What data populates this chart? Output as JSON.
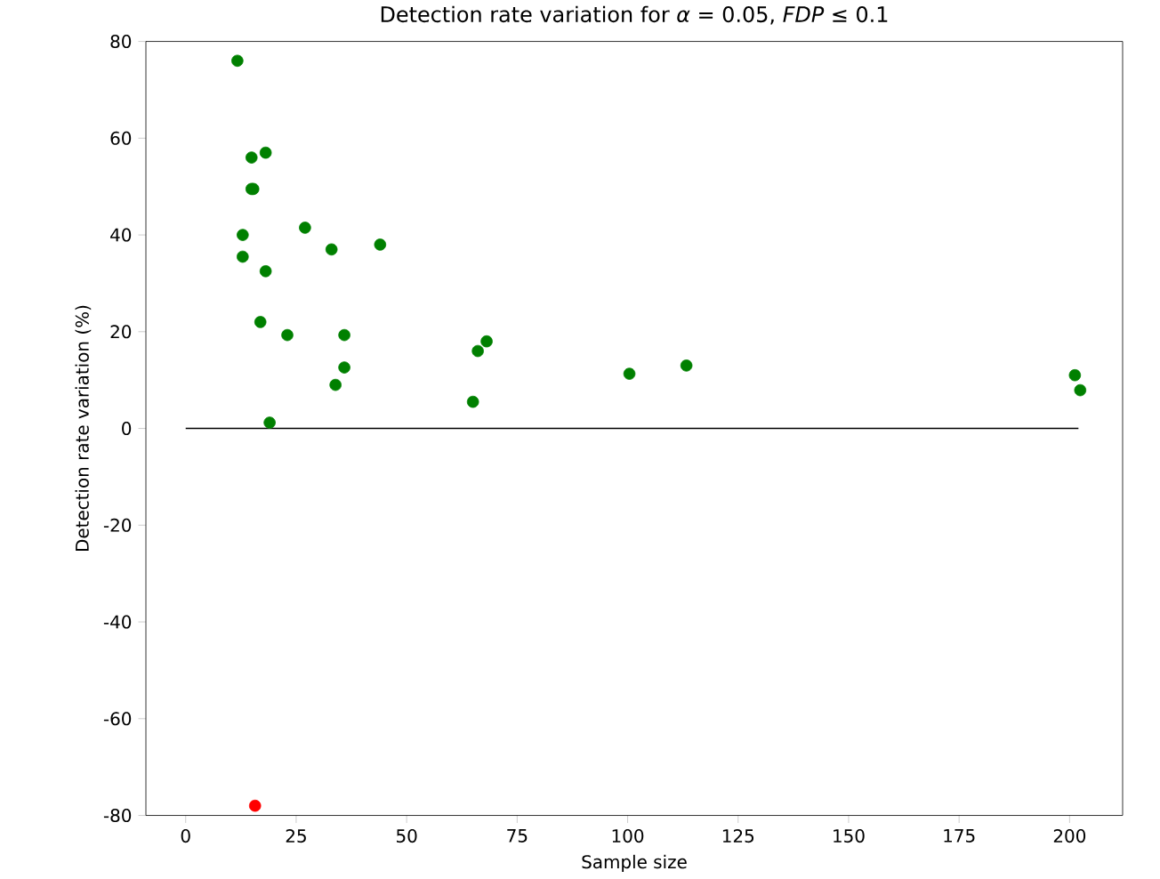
{
  "chart_data": {
    "type": "scatter",
    "title": "Detection rate variation for *α* = 0.05, *FDP* ≤ 0.1",
    "xlabel": "Sample size",
    "ylabel": "Detection rate variation (%)",
    "xlim": [
      -9,
      212
    ],
    "ylim": [
      -80,
      80
    ],
    "xticks": [
      0,
      25,
      50,
      75,
      100,
      125,
      150,
      175,
      200
    ],
    "yticks": [
      -80,
      -60,
      -40,
      -20,
      0,
      20,
      40,
      60,
      80
    ],
    "marker": "circle",
    "series": [
      {
        "type": "line",
        "color": "#000000",
        "x": [
          0,
          202
        ],
        "values": [
          0,
          0
        ],
        "marker": "none"
      },
      {
        "color": "#008000",
        "x": [
          11.7,
          14.9,
          18.1,
          14.9,
          15.3,
          12.9,
          12.9,
          18.1,
          16.9,
          23,
          27,
          33,
          44,
          35.9,
          35.9,
          33.9,
          19,
          65,
          66.1,
          68.1,
          100.4,
          113.3,
          201.2,
          202.4
        ],
        "values": [
          76,
          56,
          57,
          49.5,
          49.5,
          40,
          35.5,
          32.5,
          22,
          19.3,
          41.5,
          37,
          38,
          19.3,
          12.6,
          9,
          1.2,
          5.5,
          16,
          18,
          11.3,
          13,
          11,
          7.9
        ]
      },
      {
        "color": "#ff0000",
        "x": [
          15.7
        ],
        "values": [
          -78
        ]
      }
    ]
  }
}
